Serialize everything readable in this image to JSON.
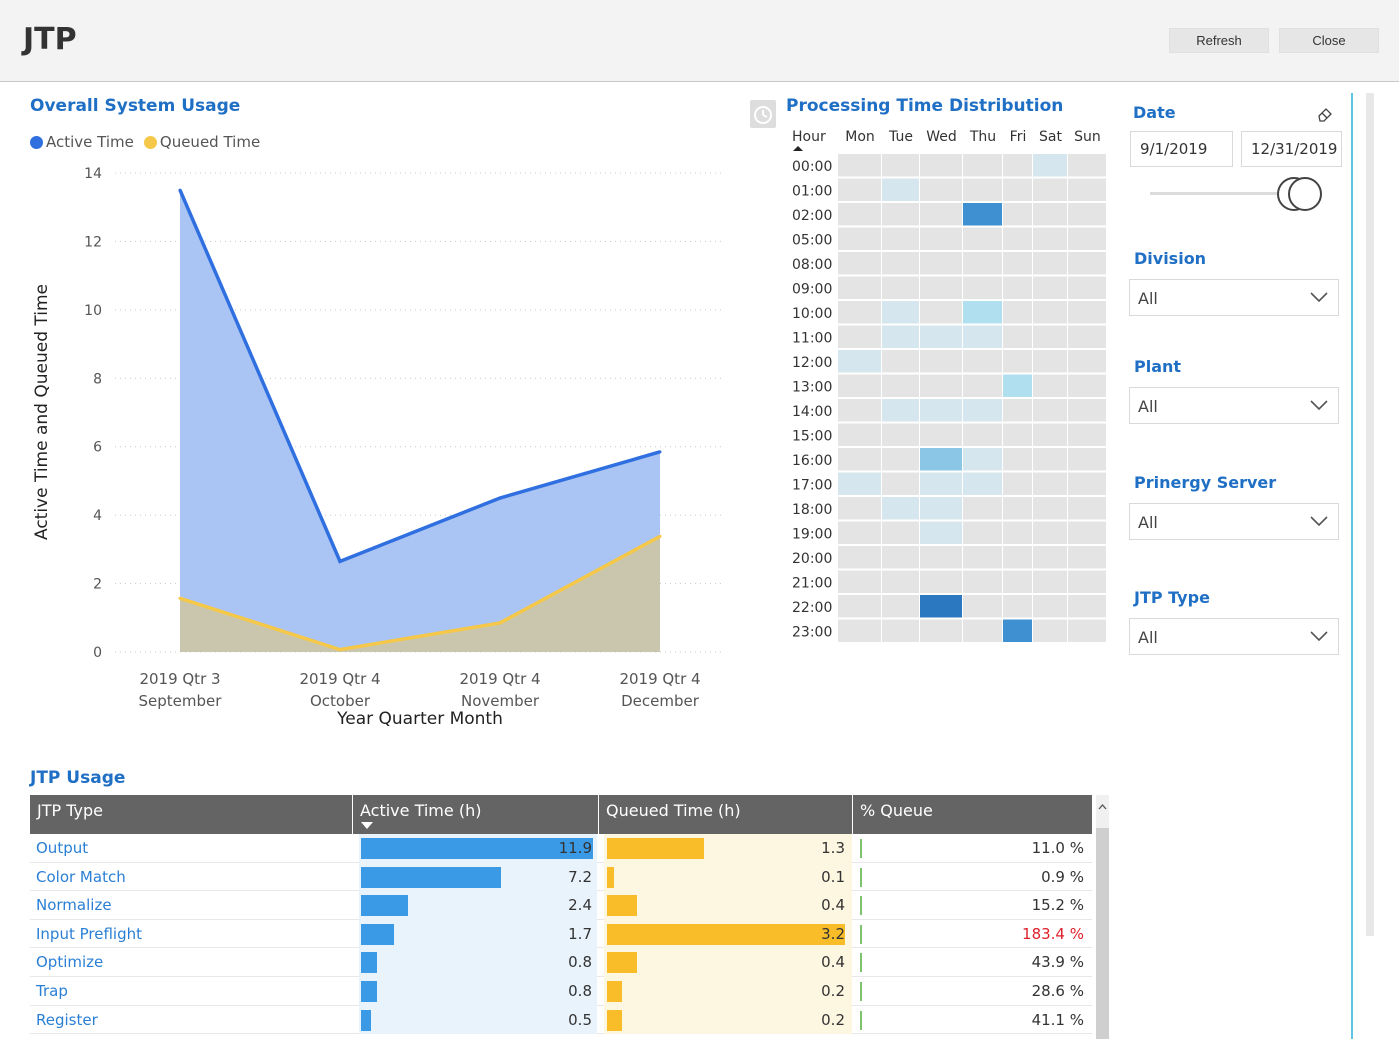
{
  "app": {
    "title": "JTP",
    "refresh_label": "Refresh",
    "close_label": "Close"
  },
  "overall": {
    "title": "Overall System Usage",
    "legend": [
      {
        "name": "Active Time",
        "color": "#2f6fe0"
      },
      {
        "name": "Queued Time",
        "color": "#f5c84a"
      }
    ]
  },
  "chart_data": {
    "type": "area",
    "categories": [
      [
        "2019 Qtr 3",
        "September"
      ],
      [
        "2019 Qtr 4",
        "October"
      ],
      [
        "2019 Qtr 4",
        "November"
      ],
      [
        "2019 Qtr 4",
        "December"
      ]
    ],
    "series": [
      {
        "name": "Active Time",
        "values": [
          13.5,
          2.65,
          4.5,
          5.85
        ],
        "color": "#2f6fe0",
        "fill": "#aac4f4"
      },
      {
        "name": "Queued Time",
        "values": [
          1.57,
          0.07,
          0.85,
          3.38
        ],
        "color": "#f5c84a",
        "fill": "#c9c6ad"
      }
    ],
    "xlabel": "Year Quarter Month",
    "ylabel": "Active Time and Queued Time",
    "ylim": [
      0,
      14
    ],
    "yticks": [
      0,
      2,
      4,
      6,
      8,
      10,
      12,
      14
    ],
    "grid": true,
    "legend_position": "top-left"
  },
  "heatmap": {
    "title": "Processing Time Distribution",
    "hour_header": "Hour",
    "days": [
      "Mon",
      "Tue",
      "Wed",
      "Thu",
      "Fri",
      "Sat",
      "Sun"
    ],
    "hours": [
      "00:00",
      "01:00",
      "02:00",
      "05:00",
      "08:00",
      "09:00",
      "10:00",
      "11:00",
      "12:00",
      "13:00",
      "14:00",
      "15:00",
      "16:00",
      "17:00",
      "18:00",
      "19:00",
      "20:00",
      "21:00",
      "22:00",
      "23:00"
    ],
    "cells": [
      [
        0,
        0,
        0,
        0,
        0,
        1,
        0
      ],
      [
        0,
        1,
        0,
        0,
        0,
        0,
        0
      ],
      [
        0,
        0,
        0,
        4,
        0,
        0,
        0
      ],
      [
        0,
        0,
        0,
        0,
        0,
        0,
        0
      ],
      [
        0,
        0,
        0,
        0,
        0,
        0,
        0
      ],
      [
        0,
        0,
        0,
        0,
        0,
        0,
        0
      ],
      [
        0,
        1,
        0,
        2,
        0,
        0,
        0
      ],
      [
        0,
        1,
        1,
        1,
        0,
        0,
        0
      ],
      [
        1,
        0,
        0,
        0,
        0,
        0,
        0
      ],
      [
        0,
        0,
        0,
        0,
        2,
        0,
        0
      ],
      [
        0,
        1,
        1,
        1,
        0,
        0,
        0
      ],
      [
        0,
        0,
        0,
        0,
        0,
        0,
        0
      ],
      [
        0,
        0,
        3,
        1,
        0,
        0,
        0
      ],
      [
        1,
        0,
        1,
        1,
        0,
        0,
        0
      ],
      [
        0,
        1,
        1,
        0,
        0,
        0,
        0
      ],
      [
        0,
        0,
        1,
        0,
        0,
        0,
        0
      ],
      [
        0,
        0,
        0,
        0,
        0,
        0,
        0
      ],
      [
        0,
        0,
        0,
        0,
        0,
        0,
        0
      ],
      [
        0,
        0,
        5,
        0,
        0,
        0,
        0
      ],
      [
        0,
        0,
        0,
        0,
        4,
        0,
        0
      ]
    ],
    "palette": [
      "#e4e4e4",
      "#d6e6ee",
      "#b0e0f0",
      "#8cc6e6",
      "#3f90d0",
      "#2c78c0"
    ]
  },
  "filters": {
    "date_label": "Date",
    "date_start": "9/1/2019",
    "date_end": "12/31/2019",
    "division_label": "Division",
    "division_value": "All",
    "plant_label": "Plant",
    "plant_value": "All",
    "server_label": "Prinergy Server",
    "server_value": "All",
    "jtp_type_label": "JTP Type",
    "jtp_type_value": "All"
  },
  "usage": {
    "title": "JTP Usage",
    "columns": [
      "JTP Type",
      "Active Time (h)",
      "Queued Time (h)",
      "% Queue"
    ],
    "max_active": 11.9,
    "max_queued": 3.2,
    "rows": [
      {
        "type": "Output",
        "active": "11.9",
        "queued": "1.3",
        "pct": "11.0 %",
        "alert": false
      },
      {
        "type": "Color Match",
        "active": "7.2",
        "queued": "0.1",
        "pct": "0.9 %",
        "alert": false
      },
      {
        "type": "Normalize",
        "active": "2.4",
        "queued": "0.4",
        "pct": "15.2 %",
        "alert": false
      },
      {
        "type": "Input Preflight",
        "active": "1.7",
        "queued": "3.2",
        "pct": "183.4 %",
        "alert": true
      },
      {
        "type": "Optimize",
        "active": "0.8",
        "queued": "0.4",
        "pct": "43.9 %",
        "alert": false
      },
      {
        "type": "Trap",
        "active": "0.8",
        "queued": "0.2",
        "pct": "28.6 %",
        "alert": false
      },
      {
        "type": "Register",
        "active": "0.5",
        "queued": "0.2",
        "pct": "41.1 %",
        "alert": false
      }
    ]
  }
}
